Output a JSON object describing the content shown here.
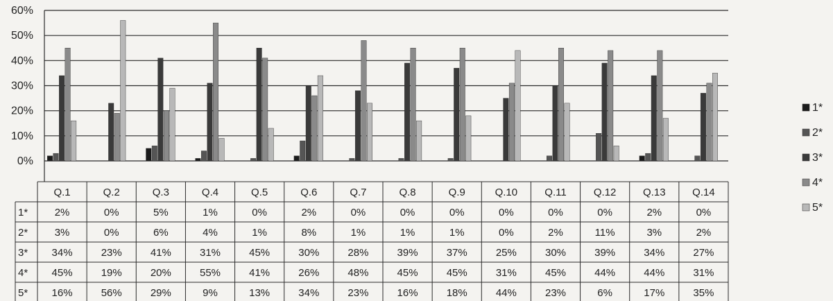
{
  "chart_data": {
    "type": "bar",
    "title": "",
    "xlabel": "",
    "ylabel": "",
    "ylim": [
      0,
      60
    ],
    "y_ticks": [
      "0%",
      "10%",
      "20%",
      "30%",
      "40%",
      "50%",
      "60%"
    ],
    "grid": true,
    "legend_position": "right",
    "categories": [
      "Q.1",
      "Q.2",
      "Q.3",
      "Q.4",
      "Q.5",
      "Q.6",
      "Q.7",
      "Q.8",
      "Q.9",
      "Q.10",
      "Q.11",
      "Q.12",
      "Q.13",
      "Q.14"
    ],
    "series": [
      {
        "name": "1*",
        "values": [
          2,
          0,
          5,
          1,
          0,
          2,
          0,
          0,
          0,
          0,
          0,
          0,
          2,
          0
        ],
        "color": "#1b1b1b"
      },
      {
        "name": "2*",
        "values": [
          3,
          0,
          6,
          4,
          1,
          8,
          1,
          1,
          1,
          0,
          2,
          11,
          3,
          2
        ],
        "color": "#555555"
      },
      {
        "name": "3*",
        "values": [
          34,
          23,
          41,
          31,
          45,
          30,
          28,
          39,
          37,
          25,
          30,
          39,
          34,
          27
        ],
        "color": "#3a3a3a"
      },
      {
        "name": "4*",
        "values": [
          45,
          19,
          20,
          55,
          41,
          26,
          48,
          45,
          45,
          31,
          45,
          44,
          44,
          31
        ],
        "color": "#8a8a8a"
      },
      {
        "name": "5*",
        "values": [
          16,
          56,
          29,
          9,
          13,
          34,
          23,
          16,
          18,
          44,
          23,
          6,
          17,
          35
        ],
        "color": "#b8b8b8"
      }
    ],
    "table": {
      "row_labels": [
        "1*",
        "2*",
        "3*",
        "4*",
        "5*"
      ],
      "rows": [
        [
          "2%",
          "0%",
          "5%",
          "1%",
          "0%",
          "2%",
          "0%",
          "0%",
          "0%",
          "0%",
          "0%",
          "0%",
          "2%",
          "0%"
        ],
        [
          "3%",
          "0%",
          "6%",
          "4%",
          "1%",
          "8%",
          "1%",
          "1%",
          "1%",
          "0%",
          "2%",
          "11%",
          "3%",
          "2%"
        ],
        [
          "34%",
          "23%",
          "41%",
          "31%",
          "45%",
          "30%",
          "28%",
          "39%",
          "37%",
          "25%",
          "30%",
          "39%",
          "34%",
          "27%"
        ],
        [
          "45%",
          "19%",
          "20%",
          "55%",
          "41%",
          "26%",
          "48%",
          "45%",
          "45%",
          "31%",
          "45%",
          "44%",
          "44%",
          "31%"
        ],
        [
          "16%",
          "56%",
          "29%",
          "9%",
          "13%",
          "34%",
          "23%",
          "16%",
          "18%",
          "44%",
          "23%",
          "6%",
          "17%",
          "35%"
        ]
      ]
    }
  }
}
